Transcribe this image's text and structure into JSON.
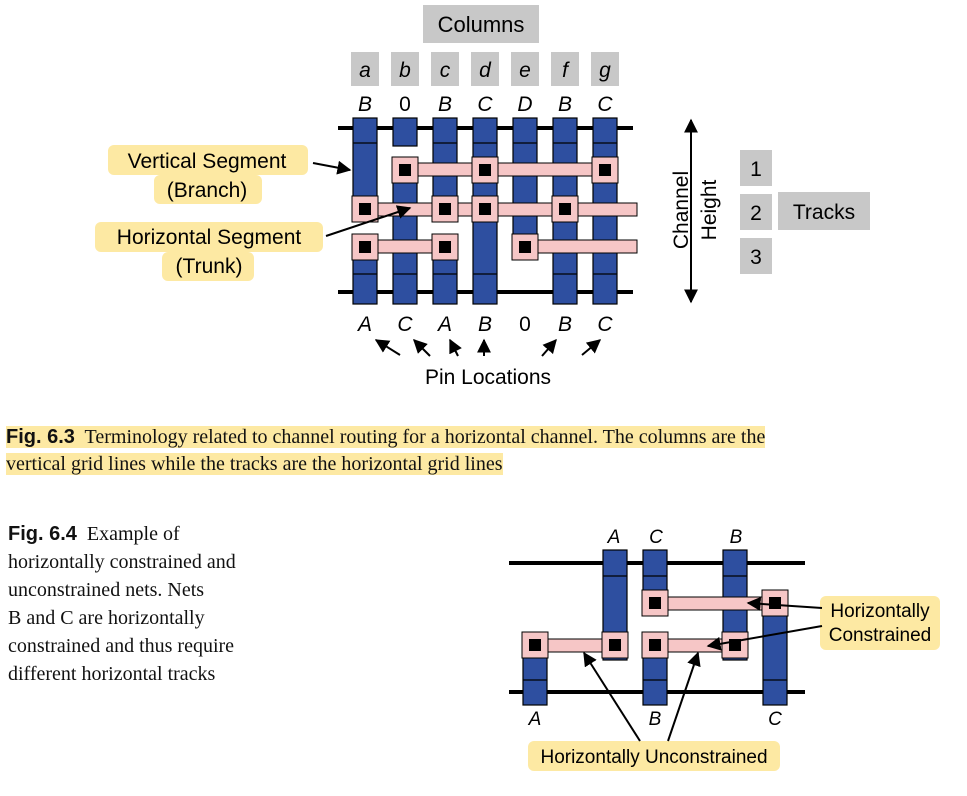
{
  "fig63": {
    "columns_title": "Columns",
    "columns": [
      "a",
      "b",
      "c",
      "d",
      "e",
      "f",
      "g"
    ],
    "top_pins": [
      "B",
      "0",
      "B",
      "C",
      "D",
      "B",
      "C"
    ],
    "bottom_pins": [
      "A",
      "C",
      "A",
      "B",
      "0",
      "B",
      "C"
    ],
    "tracks": [
      "1",
      "2",
      "3"
    ],
    "tracks_label": "Tracks",
    "channel_height_line1": "Channel",
    "channel_height_line2": "Height",
    "vertical_segment_line1": "Vertical Segment",
    "vertical_segment_line2": "(Branch)",
    "horizontal_segment_line1": "Horizontal Segment",
    "horizontal_segment_line2": "(Trunk)",
    "pin_locations": "Pin Locations",
    "caption_label": "Fig. 6.3",
    "caption_line1": "Terminology related to channel routing for a horizontal channel. The columns are the",
    "caption_line2": "vertical grid lines while the tracks are the horizontal grid lines"
  },
  "fig64": {
    "caption_label": "Fig. 6.4",
    "caption_lines": [
      "Example of",
      "horizontally constrained and",
      "unconstrained nets. Nets",
      "B and C are horizontally",
      "constrained and thus require",
      "different horizontal tracks"
    ],
    "top_pins": [
      "A",
      "C",
      "B"
    ],
    "bottom_pins": [
      "A",
      "B",
      "C"
    ],
    "constrained_line1": "Horizontally",
    "constrained_line2": "Constrained",
    "unconstrained": "Horizontally Unconstrained"
  },
  "colors": {
    "wire": "#2e4fa0",
    "trunk": "#f6c6c6",
    "highlight": "#fde9a3",
    "box": "#c8c8c8"
  }
}
